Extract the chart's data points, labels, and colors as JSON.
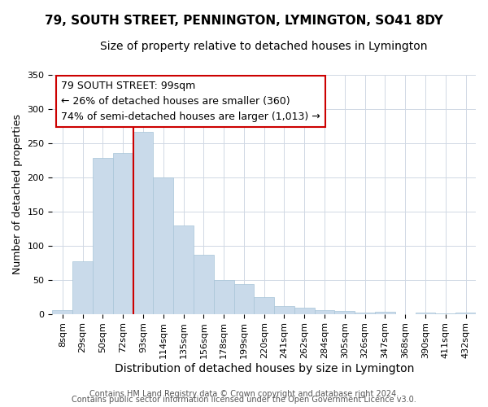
{
  "title": "79, SOUTH STREET, PENNINGTON, LYMINGTON, SO41 8DY",
  "subtitle": "Size of property relative to detached houses in Lymington",
  "xlabel": "Distribution of detached houses by size in Lymington",
  "ylabel": "Number of detached properties",
  "bar_labels": [
    "8sqm",
    "29sqm",
    "50sqm",
    "72sqm",
    "93sqm",
    "114sqm",
    "135sqm",
    "156sqm",
    "178sqm",
    "199sqm",
    "220sqm",
    "241sqm",
    "262sqm",
    "284sqm",
    "305sqm",
    "326sqm",
    "347sqm",
    "368sqm",
    "390sqm",
    "411sqm",
    "432sqm"
  ],
  "bar_values": [
    5,
    77,
    228,
    235,
    266,
    199,
    129,
    87,
    50,
    44,
    25,
    12,
    9,
    6,
    4,
    2,
    3,
    0,
    2,
    1,
    2
  ],
  "bar_color": "#c9daea",
  "bar_edge_color": "#a8c4d8",
  "vline_x": 4.0,
  "vline_color": "#cc0000",
  "ylim": [
    0,
    350
  ],
  "yticks": [
    0,
    50,
    100,
    150,
    200,
    250,
    300,
    350
  ],
  "annotation_title": "79 SOUTH STREET: 99sqm",
  "annotation_line1": "← 26% of detached houses are smaller (360)",
  "annotation_line2": "74% of semi-detached houses are larger (1,013) →",
  "annotation_box_color": "#ffffff",
  "annotation_box_edge": "#cc0000",
  "footer1": "Contains HM Land Registry data © Crown copyright and database right 2024.",
  "footer2": "Contains public sector information licensed under the Open Government Licence v3.0.",
  "title_fontsize": 11,
  "subtitle_fontsize": 10,
  "xlabel_fontsize": 10,
  "ylabel_fontsize": 9,
  "tick_fontsize": 8,
  "annotation_fontsize": 9,
  "footer_fontsize": 7
}
